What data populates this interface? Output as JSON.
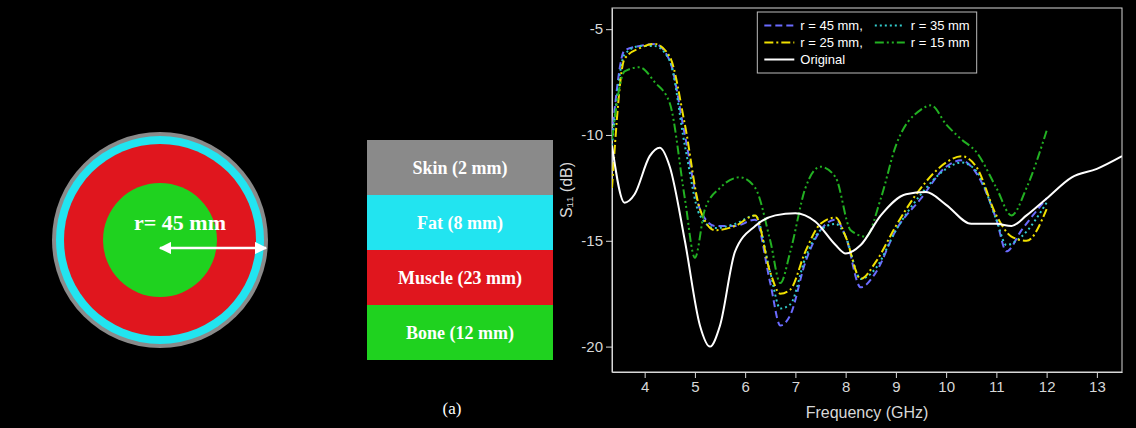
{
  "diagram": {
    "radius_label": "r= 45 mm",
    "layers": [
      {
        "label": "Skin (2 mm)",
        "color": "#8a8a8a"
      },
      {
        "label": "Fat (8 mm)",
        "color": "#22e4f0"
      },
      {
        "label": "Muscle (23 mm)",
        "color": "#e0161e"
      },
      {
        "label": "Bone (12 mm)",
        "color": "#1fd21f"
      }
    ],
    "caption": "(a)"
  },
  "chart_data": {
    "type": "line",
    "x_label": "Frequency (GHz)",
    "y_label": "S₁₁ (dB)",
    "xlim": [
      3.35,
      13.5
    ],
    "xticks": [
      4,
      5,
      6,
      7,
      8,
      9,
      10,
      11,
      12,
      13
    ],
    "ylim": [
      -21.2,
      -4
    ],
    "yticks": [
      -20,
      -15,
      -10,
      -5
    ],
    "grid": false,
    "legend": "upper center",
    "series": [
      {
        "name": "r = 45 mm,",
        "color": "#6b6bff",
        "line_style": "dash",
        "x": [
          3.35,
          3.6,
          3.9,
          4.2,
          4.5,
          4.8,
          5.1,
          5.4,
          5.8,
          6.2,
          6.5,
          6.7,
          6.9,
          7.2,
          7.5,
          7.8,
          8.0,
          8.3,
          8.6,
          9.0,
          9.5,
          10.0,
          10.3,
          10.6,
          11.0,
          11.2,
          11.5,
          12.0
        ],
        "values": [
          -10,
          -6,
          -5.8,
          -5.7,
          -6.5,
          -10,
          -13.5,
          -14.3,
          -14.3,
          -14,
          -17,
          -19,
          -18.5,
          -16,
          -14.5,
          -14,
          -14.8,
          -17.2,
          -16.5,
          -14.5,
          -13,
          -11.5,
          -11.2,
          -11.8,
          -14,
          -15.5,
          -14.5,
          -13
        ]
      },
      {
        "name": "r = 35 mm",
        "color": "#33cccc",
        "line_style": "dot",
        "x": [
          3.35,
          3.6,
          3.9,
          4.2,
          4.5,
          4.8,
          5.1,
          5.4,
          5.8,
          6.2,
          6.5,
          6.7,
          6.9,
          7.2,
          7.5,
          7.8,
          8.0,
          8.3,
          8.6,
          9.0,
          9.5,
          10.0,
          10.3,
          10.6,
          11.0,
          11.2,
          11.5,
          12.0
        ],
        "values": [
          -10.5,
          -6.2,
          -5.8,
          -5.8,
          -6.5,
          -10.5,
          -13.8,
          -14.4,
          -14.2,
          -13.8,
          -16.5,
          -18.2,
          -18,
          -15.8,
          -14.5,
          -14.2,
          -14.8,
          -16.8,
          -16.3,
          -14.5,
          -12.8,
          -11.6,
          -11.3,
          -11.7,
          -14,
          -15.2,
          -14.8,
          -13.2
        ]
      },
      {
        "name": "r = 25 mm,",
        "color": "#f0e000",
        "line_style": "dashdot",
        "x": [
          3.35,
          3.6,
          3.9,
          4.2,
          4.5,
          4.8,
          5.1,
          5.4,
          5.8,
          6.2,
          6.5,
          6.7,
          6.9,
          7.2,
          7.5,
          7.8,
          8.0,
          8.3,
          8.6,
          9.0,
          9.5,
          10.0,
          10.3,
          10.6,
          11.0,
          11.3,
          11.6,
          12.0
        ],
        "values": [
          -12.5,
          -6.4,
          -5.9,
          -5.7,
          -6.3,
          -9.5,
          -13.5,
          -14.5,
          -14.3,
          -13.8,
          -16.5,
          -17.5,
          -17.3,
          -15.5,
          -14.2,
          -13.9,
          -14.8,
          -16.8,
          -16,
          -14.3,
          -12.5,
          -11.3,
          -11,
          -11.5,
          -13.8,
          -14.8,
          -15,
          -13.5
        ]
      },
      {
        "name": "r = 15 mm",
        "color": "#22b022",
        "line_style": "dashdotdot",
        "x": [
          3.35,
          3.6,
          3.9,
          4.2,
          4.5,
          4.8,
          5.0,
          5.2,
          5.5,
          5.9,
          6.2,
          6.5,
          6.7,
          6.9,
          7.2,
          7.5,
          7.8,
          8.1,
          8.4,
          8.7,
          9.0,
          9.5,
          9.7,
          10.0,
          10.3,
          10.6,
          11.0,
          11.3,
          11.6,
          12.0
        ],
        "values": [
          -10.2,
          -7,
          -6.8,
          -7.5,
          -8.5,
          -13,
          -15.8,
          -13.5,
          -12.5,
          -12,
          -12.5,
          -15,
          -17,
          -15.5,
          -12.5,
          -11.5,
          -12,
          -14.5,
          -14.8,
          -13,
          -10.5,
          -8.8,
          -8.6,
          -9.5,
          -10.2,
          -10.8,
          -12.5,
          -13.8,
          -12.5,
          -9.8
        ]
      },
      {
        "name": "Original",
        "color": "#ffffff",
        "line_style": "solid",
        "x": [
          3.35,
          3.6,
          3.8,
          4.1,
          4.3,
          4.5,
          4.8,
          5.1,
          5.3,
          5.5,
          5.8,
          6.2,
          6.6,
          7.0,
          7.4,
          7.8,
          8.0,
          8.3,
          8.7,
          9.2,
          9.6,
          10.0,
          10.5,
          11.0,
          11.3,
          11.6,
          12.0,
          12.5,
          13.0,
          13.5
        ],
        "values": [
          -10.5,
          -13.2,
          -12.8,
          -11,
          -10.6,
          -11.5,
          -15,
          -19,
          -20,
          -19,
          -15.5,
          -14.3,
          -13.8,
          -13.7,
          -14.1,
          -15.2,
          -15.6,
          -15.2,
          -13.8,
          -12.8,
          -12.7,
          -13.3,
          -14.2,
          -14.2,
          -14.3,
          -13.8,
          -13,
          -12,
          -11.6,
          -11
        ]
      }
    ]
  }
}
